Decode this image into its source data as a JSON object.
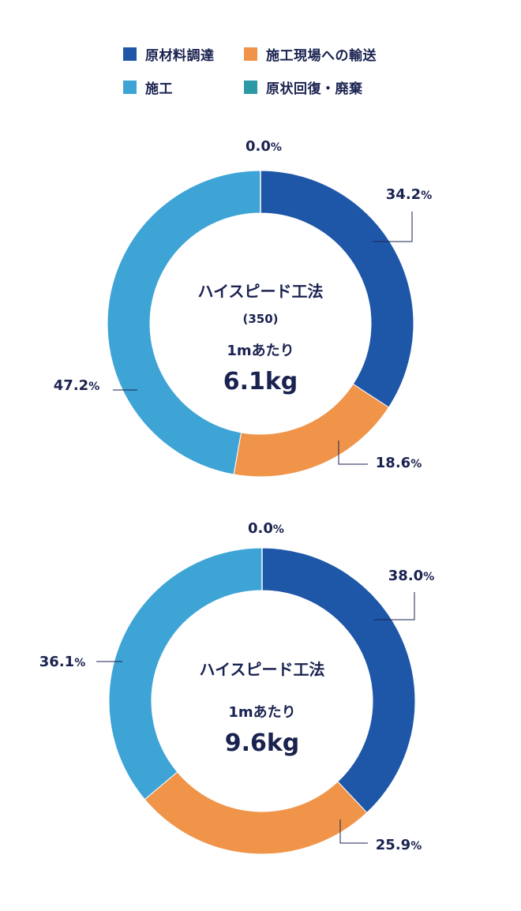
{
  "legend": [
    {
      "label": "原材料調達",
      "color": "#1f57a8"
    },
    {
      "label": "施工現場への輸送",
      "color": "#f0944a"
    },
    {
      "label": "施工",
      "color": "#3ea4d6"
    },
    {
      "label": "原状回復・廃棄",
      "color": "#2b9aa5"
    }
  ],
  "chart_data": [
    {
      "type": "pie",
      "categories": [
        "原材料調達",
        "施工現場への輸送",
        "施工",
        "原状回復・廃棄"
      ],
      "values": [
        34.2,
        18.6,
        47.2,
        0.0
      ],
      "value_labels": [
        "34.2",
        "18.6",
        "47.2",
        "0.0"
      ],
      "unit": "%",
      "center_title": "ハイスピード工法",
      "center_subtitle": "(350)",
      "center_caption": "1mあたり",
      "center_value": "6.1kg"
    },
    {
      "type": "pie",
      "categories": [
        "原材料調達",
        "施工現場への輸送",
        "施工",
        "原状回復・廃棄"
      ],
      "values": [
        38.0,
        25.9,
        36.1,
        0.0
      ],
      "value_labels": [
        "38.0",
        "25.9",
        "36.1",
        "0.0"
      ],
      "unit": "%",
      "center_title": "ハイスピード工法",
      "center_caption": "1mあたり",
      "center_value": "9.6kg"
    }
  ]
}
